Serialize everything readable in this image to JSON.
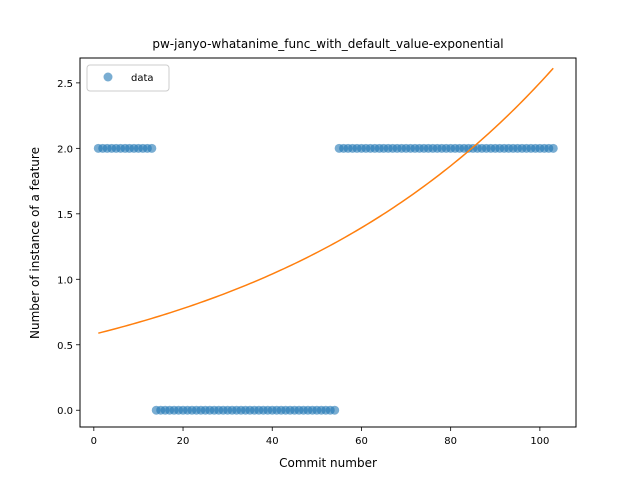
{
  "chart_data": {
    "type": "scatter",
    "title": "pw-janyo-whatanime_func_with_default_value-exponential",
    "xlabel": "Commit number",
    "ylabel": "Number of instance of a feature",
    "xlim": [
      -3.1,
      108.1
    ],
    "ylim": [
      -0.128,
      2.69
    ],
    "xticks": [
      0,
      20,
      40,
      60,
      80,
      100
    ],
    "yticks": [
      0.0,
      0.5,
      1.0,
      1.5,
      2.0,
      2.5
    ],
    "xtick_labels": [
      "0",
      "20",
      "40",
      "60",
      "80",
      "100"
    ],
    "ytick_labels": [
      "0.0",
      "0.5",
      "1.0",
      "1.5",
      "2.0",
      "2.5"
    ],
    "grid": false,
    "legend_position": "upper-left",
    "series": [
      {
        "name": "data",
        "kind": "scatter",
        "color": "#1f77b4",
        "opacity": 0.6,
        "x": [
          1,
          2,
          3,
          4,
          5,
          6,
          7,
          8,
          9,
          10,
          11,
          12,
          13,
          14,
          15,
          16,
          17,
          18,
          19,
          20,
          21,
          22,
          23,
          24,
          25,
          26,
          27,
          28,
          29,
          30,
          31,
          32,
          33,
          34,
          35,
          36,
          37,
          38,
          39,
          40,
          41,
          42,
          43,
          44,
          45,
          46,
          47,
          48,
          49,
          50,
          51,
          52,
          53,
          54,
          55,
          56,
          57,
          58,
          59,
          60,
          61,
          62,
          63,
          64,
          65,
          66,
          67,
          68,
          69,
          70,
          71,
          72,
          73,
          74,
          75,
          76,
          77,
          78,
          79,
          80,
          81,
          82,
          83,
          84,
          85,
          86,
          87,
          88,
          89,
          90,
          91,
          92,
          93,
          94,
          95,
          96,
          97,
          98,
          99,
          100,
          101,
          102,
          103
        ],
        "y": [
          2,
          2,
          2,
          2,
          2,
          2,
          2,
          2,
          2,
          2,
          2,
          2,
          2,
          0,
          0,
          0,
          0,
          0,
          0,
          0,
          0,
          0,
          0,
          0,
          0,
          0,
          0,
          0,
          0,
          0,
          0,
          0,
          0,
          0,
          0,
          0,
          0,
          0,
          0,
          0,
          0,
          0,
          0,
          0,
          0,
          0,
          0,
          0,
          0,
          0,
          0,
          0,
          0,
          0,
          2,
          2,
          2,
          2,
          2,
          2,
          2,
          2,
          2,
          2,
          2,
          2,
          2,
          2,
          2,
          2,
          2,
          2,
          2,
          2,
          2,
          2,
          2,
          2,
          2,
          2,
          2,
          2,
          2,
          2,
          2,
          2,
          2,
          2,
          2,
          2,
          2,
          2,
          2,
          2,
          2,
          2,
          2,
          2,
          2,
          2,
          2,
          2,
          2
        ]
      },
      {
        "kind": "line",
        "color": "#ff7f0e",
        "fit": {
          "a": 0.58,
          "b": 0.01461
        },
        "x_range": [
          1,
          103
        ]
      }
    ]
  }
}
